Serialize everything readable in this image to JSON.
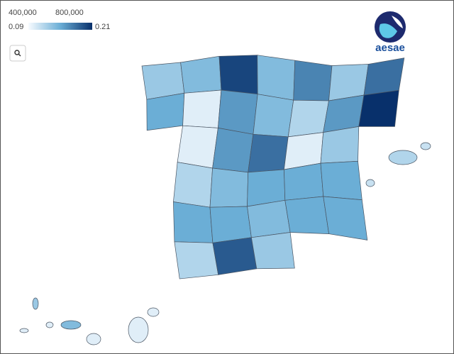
{
  "chart_data": {
    "type": "choropleth",
    "top_ticks": [
      {
        "value": 400000,
        "label": "400,000"
      },
      {
        "value": 800000,
        "label": "800,000"
      }
    ],
    "colorbar": {
      "ticks": [
        0.09,
        0.21
      ]
    },
    "logo": "aesae",
    "regions": {
      "values": [
        0.13,
        0.14,
        0.2,
        0.14,
        0.17,
        0.13,
        0.18,
        0.15,
        0.1,
        0.16,
        0.14,
        0.12,
        0.16,
        0.21,
        0.1,
        0.16,
        0.18,
        0.1,
        0.13,
        0.12,
        0.14,
        0.15,
        0.15,
        0.15,
        0.15,
        0.15,
        0.14,
        0.15,
        0.15,
        0.12,
        0.19,
        0.13,
        0.12,
        0.11,
        0.11,
        0.13,
        0.1,
        0.1,
        0.14,
        0.1,
        0.1,
        0.1
      ]
    }
  }
}
